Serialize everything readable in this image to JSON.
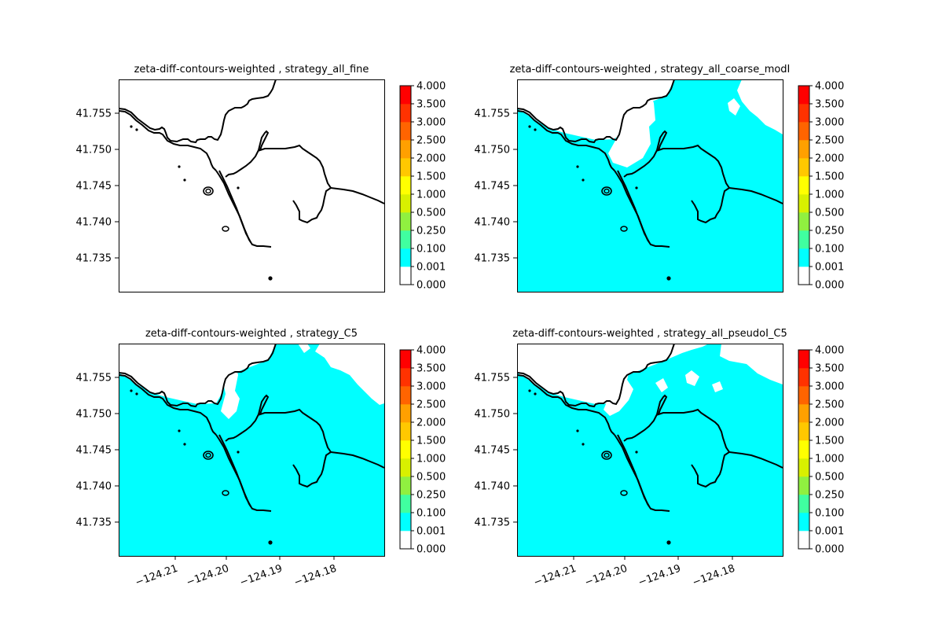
{
  "chart_data": [
    {
      "type": "heatmap",
      "title": "zeta-diff-contours-weighted , strategy_all_fine",
      "yticks": [
        "41.735",
        "41.740",
        "41.745",
        "41.750",
        "41.755"
      ],
      "xticks": [],
      "colorbar_ticks": [
        "0.000",
        "0.001",
        "0.100",
        "0.250",
        "0.500",
        "1.000",
        "1.500",
        "2.000",
        "2.500",
        "3.000",
        "3.500",
        "4.000"
      ],
      "fill": "none"
    },
    {
      "type": "heatmap",
      "title": "zeta-diff-contours-weighted , strategy_all_coarse_modI",
      "yticks": [
        "41.735",
        "41.740",
        "41.745",
        "41.750",
        "41.755"
      ],
      "xticks": [],
      "colorbar_ticks": [
        "0.000",
        "0.001",
        "0.100",
        "0.250",
        "0.500",
        "1.000",
        "1.500",
        "2.000",
        "2.500",
        "3.000",
        "3.500",
        "4.000"
      ],
      "fill": "coarse"
    },
    {
      "type": "heatmap",
      "title": "zeta-diff-contours-weighted , strategy_C5",
      "yticks": [
        "41.735",
        "41.740",
        "41.745",
        "41.750",
        "41.755"
      ],
      "xticks": [
        "−124.21",
        "−124.20",
        "−124.19",
        "−124.18"
      ],
      "colorbar_ticks": [
        "0.000",
        "0.001",
        "0.100",
        "0.250",
        "0.500",
        "1.000",
        "1.500",
        "2.000",
        "2.500",
        "3.000",
        "3.500",
        "4.000"
      ],
      "fill": "c5"
    },
    {
      "type": "heatmap",
      "title": "zeta-diff-contours-weighted , strategy_all_pseudoI_C5",
      "yticks": [
        "41.735",
        "41.740",
        "41.745",
        "41.750",
        "41.755"
      ],
      "xticks": [
        "−124.21",
        "−124.20",
        "−124.19",
        "−124.18"
      ],
      "colorbar_ticks": [
        "0.000",
        "0.001",
        "0.100",
        "0.250",
        "0.500",
        "1.000",
        "1.500",
        "2.000",
        "2.500",
        "3.000",
        "3.500",
        "4.000"
      ],
      "fill": "pseudo"
    }
  ],
  "colorbar_colors": [
    "#ffffff",
    "#00ffff",
    "#40ffa0",
    "#90f040",
    "#d8f000",
    "#ffff00",
    "#ffc800",
    "#ffa000",
    "#ff6400",
    "#ff3200",
    "#ff0000"
  ],
  "fill_color": "#00ffff",
  "line_color": "#000000"
}
